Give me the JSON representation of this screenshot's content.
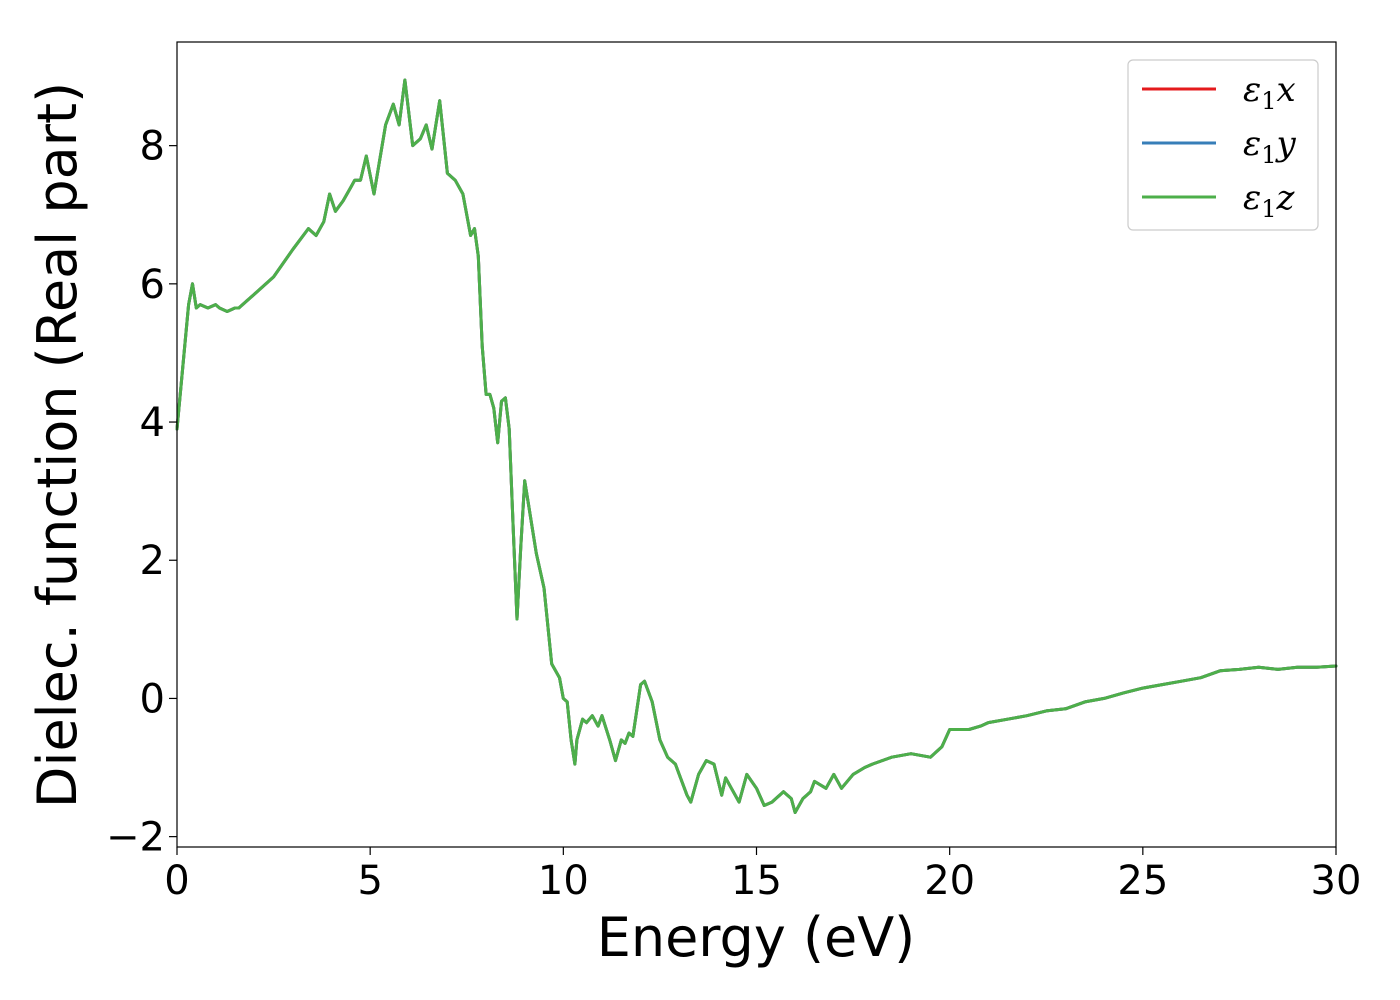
{
  "chart_data": {
    "type": "line",
    "title": "",
    "xlabel": "Energy (eV)",
    "ylabel": "Dielec. function (Real part)",
    "xlim": [
      0,
      30
    ],
    "ylim": [
      -2.15,
      9.5
    ],
    "xticks": [
      0,
      5,
      10,
      15,
      20,
      25,
      30
    ],
    "xtick_labels": [
      "0",
      "5",
      "10",
      "15",
      "20",
      "25",
      "30"
    ],
    "yticks": [
      -2,
      0,
      2,
      4,
      6,
      8
    ],
    "ytick_labels": [
      "−2",
      "0",
      "2",
      "4",
      "6",
      "8"
    ],
    "grid": false,
    "legend_position": "top-right",
    "series": [
      {
        "name": "ε1x",
        "legend_main": "ε",
        "legend_sub": "1",
        "legend_tail": "x",
        "color": "#e41a1c"
      },
      {
        "name": "ε1y",
        "legend_main": "ε",
        "legend_sub": "1",
        "legend_tail": "y",
        "color": "#377eb8"
      },
      {
        "name": "ε1z",
        "legend_main": "ε",
        "legend_sub": "1",
        "legend_tail": "z",
        "color": "#4daf4a"
      }
    ],
    "shared_curve": {
      "x": [
        0,
        0.15,
        0.3,
        0.4,
        0.5,
        0.6,
        0.8,
        1.0,
        1.1,
        1.3,
        1.5,
        1.6,
        1.8,
        2.0,
        2.5,
        3.0,
        3.4,
        3.6,
        3.8,
        3.95,
        4.1,
        4.3,
        4.5,
        4.6,
        4.75,
        4.9,
        5.1,
        5.4,
        5.6,
        5.75,
        5.9,
        6.1,
        6.3,
        6.45,
        6.6,
        6.8,
        7.0,
        7.2,
        7.4,
        7.6,
        7.7,
        7.8,
        7.9,
        8.0,
        8.1,
        8.2,
        8.3,
        8.4,
        8.5,
        8.6,
        8.7,
        8.8,
        8.9,
        9.0,
        9.1,
        9.3,
        9.5,
        9.7,
        9.9,
        10.0,
        10.1,
        10.2,
        10.3,
        10.35,
        10.5,
        10.6,
        10.75,
        10.9,
        11.0,
        11.2,
        11.35,
        11.5,
        11.6,
        11.7,
        11.8,
        12.0,
        12.1,
        12.3,
        12.5,
        12.7,
        12.9,
        13.0,
        13.2,
        13.3,
        13.5,
        13.7,
        13.9,
        14.1,
        14.2,
        14.35,
        14.55,
        14.75,
        15.0,
        15.2,
        15.4,
        15.5,
        15.7,
        15.9,
        16.0,
        16.2,
        16.4,
        16.5,
        16.8,
        17.0,
        17.2,
        17.5,
        17.8,
        18.0,
        18.5,
        19.0,
        19.5,
        19.8,
        20.0,
        20.5,
        20.8,
        21.0,
        21.5,
        22.0,
        22.5,
        23.0,
        23.5,
        24.0,
        24.5,
        25.0,
        25.5,
        26.0,
        26.5,
        27.0,
        27.5,
        28.0,
        28.5,
        29.0,
        29.5,
        30.0
      ],
      "y": [
        3.9,
        4.8,
        5.7,
        6.0,
        5.65,
        5.7,
        5.65,
        5.7,
        5.65,
        5.6,
        5.65,
        5.65,
        5.75,
        5.85,
        6.1,
        6.5,
        6.8,
        6.7,
        6.9,
        7.3,
        7.05,
        7.2,
        7.4,
        7.5,
        7.5,
        7.85,
        7.3,
        8.3,
        8.6,
        8.3,
        8.95,
        8.0,
        8.1,
        8.3,
        7.95,
        8.65,
        7.6,
        7.5,
        7.3,
        6.7,
        6.8,
        6.4,
        5.1,
        4.4,
        4.4,
        4.2,
        3.7,
        4.3,
        4.35,
        3.9,
        2.5,
        1.15,
        2.2,
        3.15,
        2.8,
        2.1,
        1.6,
        0.5,
        0.3,
        0.0,
        -0.05,
        -0.6,
        -0.95,
        -0.6,
        -0.3,
        -0.35,
        -0.25,
        -0.4,
        -0.25,
        -0.6,
        -0.9,
        -0.6,
        -0.65,
        -0.5,
        -0.55,
        0.2,
        0.25,
        -0.05,
        -0.6,
        -0.85,
        -0.95,
        -1.1,
        -1.4,
        -1.5,
        -1.1,
        -0.9,
        -0.95,
        -1.4,
        -1.15,
        -1.3,
        -1.5,
        -1.1,
        -1.3,
        -1.55,
        -1.5,
        -1.45,
        -1.35,
        -1.45,
        -1.65,
        -1.45,
        -1.35,
        -1.2,
        -1.3,
        -1.1,
        -1.3,
        -1.1,
        -1.0,
        -0.95,
        -0.85,
        -0.8,
        -0.85,
        -0.7,
        -0.45,
        -0.45,
        -0.4,
        -0.35,
        -0.3,
        -0.25,
        -0.18,
        -0.15,
        -0.05,
        0.0,
        0.08,
        0.15,
        0.2,
        0.25,
        0.3,
        0.4,
        0.42,
        0.45,
        0.42,
        0.45,
        0.45,
        0.47
      ]
    }
  }
}
